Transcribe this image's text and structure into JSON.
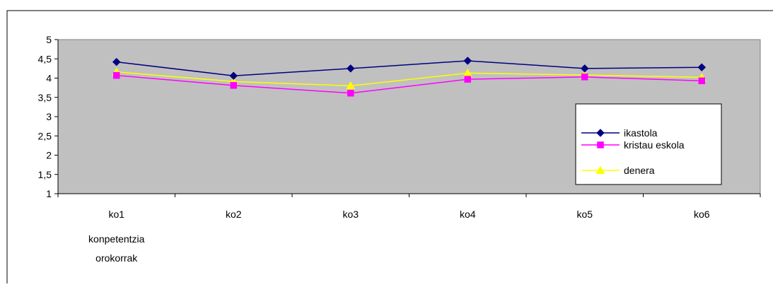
{
  "chart_data": {
    "type": "line",
    "categories": [
      "ko1",
      "ko2",
      "ko3",
      "ko4",
      "ko5",
      "ko6"
    ],
    "category_sublabels": [
      "konpetentzia orokorrak",
      "",
      "",
      "",
      "",
      ""
    ],
    "series": [
      {
        "name": "ikastola",
        "values": [
          4.42,
          4.06,
          4.25,
          4.45,
          4.25,
          4.28
        ],
        "color": "#000080",
        "marker": "diamond"
      },
      {
        "name": "kristau eskola",
        "values": [
          4.07,
          3.81,
          3.61,
          3.97,
          4.03,
          3.93
        ],
        "color": "#FF00FF",
        "marker": "square"
      },
      {
        "name": "denera",
        "values": [
          4.16,
          3.91,
          3.8,
          4.13,
          4.08,
          4.02
        ],
        "color": "#FFFF00",
        "marker": "triangle"
      }
    ],
    "ylim": [
      1,
      5
    ],
    "y_ticks": [
      "1",
      "1,5",
      "2",
      "2,5",
      "3",
      "3,5",
      "4",
      "4,5",
      "5"
    ],
    "plot_background": "#C0C0C0",
    "grid": false,
    "legend_position": "right"
  }
}
